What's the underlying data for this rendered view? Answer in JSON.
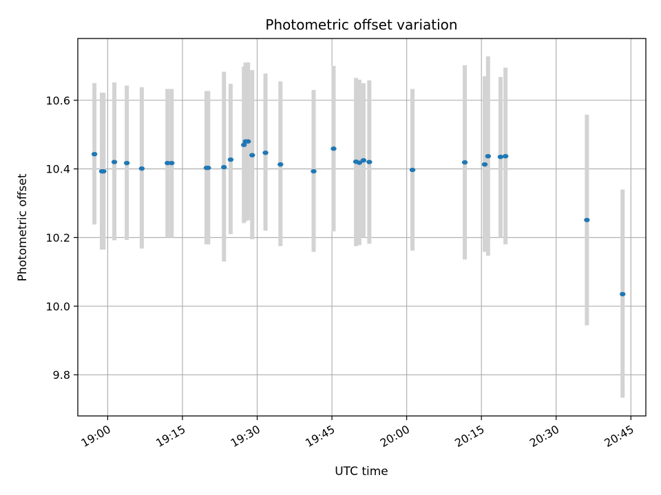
{
  "chart_data": {
    "type": "scatter",
    "title": "Photometric offset variation",
    "xlabel": "UTC time",
    "ylabel": "Photometric offset",
    "grid": true,
    "xlim": [
      "18:54:00",
      "20:48:00"
    ],
    "ylim": [
      9.68,
      10.78
    ],
    "xticks": [
      "19:00",
      "19:15",
      "19:30",
      "19:45",
      "20:00",
      "20:15",
      "20:30",
      "20:45"
    ],
    "yticks": [
      "9.8",
      "10.0",
      "10.2",
      "10.4",
      "10.6"
    ],
    "colors": {
      "marker": "#1f77b4",
      "errorbar": "#d3d3d3",
      "grid": "#b0b0b0"
    },
    "series": [
      {
        "points": [
          {
            "t": "18:57:20",
            "y": 10.443,
            "lo": 10.238,
            "hi": 10.65
          },
          {
            "t": "18:58:50",
            "y": 10.393,
            "lo": 10.165,
            "hi": 10.622
          },
          {
            "t": "18:59:10",
            "y": 10.393,
            "lo": 10.165,
            "hi": 10.622
          },
          {
            "t": "19:01:20",
            "y": 10.42,
            "lo": 10.192,
            "hi": 10.652
          },
          {
            "t": "19:03:50",
            "y": 10.417,
            "lo": 10.193,
            "hi": 10.643
          },
          {
            "t": "19:06:50",
            "y": 10.401,
            "lo": 10.168,
            "hi": 10.638
          },
          {
            "t": "19:12:00",
            "y": 10.417,
            "lo": 10.2,
            "hi": 10.633
          },
          {
            "t": "19:12:50",
            "y": 10.417,
            "lo": 10.2,
            "hi": 10.633
          },
          {
            "t": "19:19:50",
            "y": 10.403,
            "lo": 10.18,
            "hi": 10.627
          },
          {
            "t": "19:20:10",
            "y": 10.403,
            "lo": 10.18,
            "hi": 10.627
          },
          {
            "t": "19:23:20",
            "y": 10.405,
            "lo": 10.13,
            "hi": 10.683
          },
          {
            "t": "19:24:40",
            "y": 10.427,
            "lo": 10.21,
            "hi": 10.648
          },
          {
            "t": "19:27:20",
            "y": 10.47,
            "lo": 10.242,
            "hi": 10.698
          },
          {
            "t": "19:27:40",
            "y": 10.48,
            "lo": 10.248,
            "hi": 10.71
          },
          {
            "t": "19:28:10",
            "y": 10.48,
            "lo": 10.25,
            "hi": 10.71
          },
          {
            "t": "19:29:00",
            "y": 10.44,
            "lo": 10.195,
            "hi": 10.688
          },
          {
            "t": "19:31:40",
            "y": 10.447,
            "lo": 10.22,
            "hi": 10.678
          },
          {
            "t": "19:34:40",
            "y": 10.413,
            "lo": 10.175,
            "hi": 10.655
          },
          {
            "t": "19:41:20",
            "y": 10.393,
            "lo": 10.158,
            "hi": 10.63
          },
          {
            "t": "19:45:20",
            "y": 10.459,
            "lo": 10.218,
            "hi": 10.7
          },
          {
            "t": "19:49:50",
            "y": 10.421,
            "lo": 10.175,
            "hi": 10.665
          },
          {
            "t": "19:50:30",
            "y": 10.418,
            "lo": 10.178,
            "hi": 10.66
          },
          {
            "t": "19:51:20",
            "y": 10.425,
            "lo": 10.2,
            "hi": 10.65
          },
          {
            "t": "19:52:30",
            "y": 10.42,
            "lo": 10.182,
            "hi": 10.658
          },
          {
            "t": "20:01:10",
            "y": 10.397,
            "lo": 10.162,
            "hi": 10.633
          },
          {
            "t": "20:11:40",
            "y": 10.419,
            "lo": 10.136,
            "hi": 10.702
          },
          {
            "t": "20:15:40",
            "y": 10.413,
            "lo": 10.158,
            "hi": 10.67
          },
          {
            "t": "20:16:20",
            "y": 10.437,
            "lo": 10.147,
            "hi": 10.728
          },
          {
            "t": "20:18:50",
            "y": 10.435,
            "lo": 10.2,
            "hi": 10.668
          },
          {
            "t": "20:19:50",
            "y": 10.437,
            "lo": 10.18,
            "hi": 10.695
          },
          {
            "t": "20:36:10",
            "y": 10.251,
            "lo": 9.944,
            "hi": 10.558
          },
          {
            "t": "20:43:20",
            "y": 10.035,
            "lo": 9.733,
            "hi": 10.34
          }
        ]
      }
    ]
  }
}
